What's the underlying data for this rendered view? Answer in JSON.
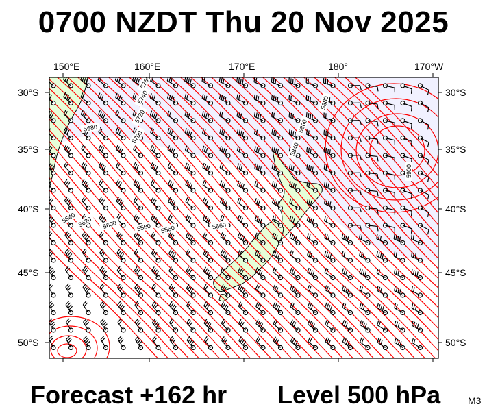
{
  "title": "0700 NZDT Thu 20 Nov 2025",
  "forecast_label": "Forecast +162 hr",
  "level_label": "Level 500 hPa",
  "model_tag": "M3",
  "axes": {
    "lon_labels": [
      "150°E",
      "160°E",
      "170°E",
      "180°",
      "170°W"
    ],
    "lat_labels": [
      "30°S",
      "35°S",
      "40°S",
      "45°S",
      "50°S"
    ]
  },
  "contour_labels": [
    "5760",
    "5740",
    "5720",
    "5700",
    "5680",
    "5660",
    "5640",
    "5620",
    "5600",
    "5580",
    "5560",
    "5900",
    "5880",
    "5860",
    "5840"
  ],
  "colors": {
    "contour": "#ff0000",
    "land": "#e6ffd8",
    "sea": "#ffffff",
    "high_shade": "#f1f1ff",
    "barb": "#000000"
  }
}
